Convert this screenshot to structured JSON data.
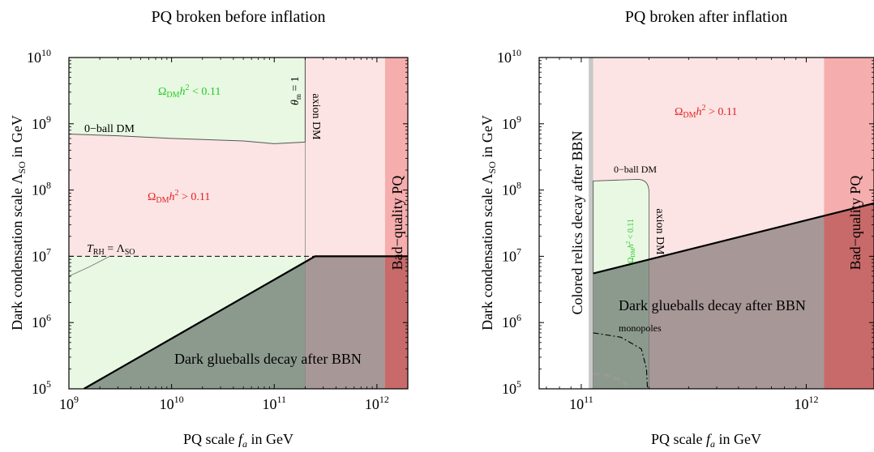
{
  "colors": {
    "dm_ok": "#e8f8e3",
    "overclosed": "#fde4e4",
    "bad_quality": "#f5a3a3",
    "glueball": "#8c9a8e",
    "glueball_over_red": "#a89797",
    "bad_over_glueball": "#c86a6a",
    "green_text": "#22cc22",
    "red_text": "#e02020",
    "grey_band": "#c8c8c8"
  },
  "chart_data": [
    {
      "type": "area",
      "title": "PQ broken before inflation",
      "xlabel": "PQ scale f_a in GeV",
      "ylabel": "Dark condensation scale Λ_SO in GeV",
      "xscale": "log",
      "yscale": "log",
      "xlim": [
        1000000000.0,
        2000000000000.0
      ],
      "ylim": [
        100000.0,
        10000000000.0
      ],
      "x_ticks": [
        {
          "base": "10",
          "exp": "9",
          "value": 1000000000.0
        },
        {
          "base": "10",
          "exp": "10",
          "value": 10000000000.0
        },
        {
          "base": "10",
          "exp": "11",
          "value": 100000000000.0
        },
        {
          "base": "10",
          "exp": "12",
          "value": 1000000000000.0
        }
      ],
      "y_ticks": [
        {
          "base": "10",
          "exp": "5",
          "value": 100000.0
        },
        {
          "base": "10",
          "exp": "6",
          "value": 1000000.0
        },
        {
          "base": "10",
          "exp": "7",
          "value": 10000000.0
        },
        {
          "base": "10",
          "exp": "8",
          "value": 100000000.0
        },
        {
          "base": "10",
          "exp": "9",
          "value": 1000000000.0
        },
        {
          "base": "10",
          "exp": "10",
          "value": 10000000000.0
        }
      ],
      "regions": {
        "theta_line_fa": 200000000000.0,
        "reheat_lambda": 10000000.0,
        "bad_quality_fa": 1200000000000.0,
        "glueball_boundary": [
          [
            1400000000.0,
            100000.0
          ],
          [
            250000000000.0,
            10000000.0
          ],
          [
            2000000000000.0,
            10000000.0
          ]
        ],
        "oball_boundary": [
          [
            1000000000.0,
            700000000.0
          ],
          [
            3000000000.0,
            660000000.0
          ],
          [
            10000000000.0,
            600000000.0
          ],
          [
            50000000000.0,
            550000000.0
          ],
          [
            100000000000.0,
            500000000.0
          ],
          [
            200000000000.0,
            530000000.0
          ],
          [
            200000000000.0,
            10000000000.0
          ]
        ],
        "reheat_curve": [
          [
            1000000000.0,
            5000000.0
          ],
          [
            1600000000.0,
            7000000.0
          ],
          [
            2500000000.0,
            10000000.0
          ]
        ]
      },
      "annotations": {
        "dm_under": "Ω_DM h^2 < 0.11",
        "dm_over": "Ω_DM h^2 > 0.11",
        "oball": "0−ball DM",
        "axion": "axion DM",
        "theta": "θ_m = 1",
        "reheat": "T_RH = Λ_SO",
        "glueballs": "Dark glueballs decay after BBN",
        "bad_quality": "Bad−quality PQ"
      }
    },
    {
      "type": "area",
      "title": "PQ broken after inflation",
      "xlabel": "PQ scale f_a in GeV",
      "ylabel": "Dark condensation scale Λ_SO in GeV",
      "xscale": "log",
      "yscale": "log",
      "xlim": [
        65000000000.0,
        2000000000000.0
      ],
      "ylim": [
        100000.0,
        10000000000.0
      ],
      "x_ticks": [
        {
          "base": "10",
          "exp": "11",
          "value": 100000000000.0
        },
        {
          "base": "10",
          "exp": "12",
          "value": 1000000000000.0
        }
      ],
      "y_ticks": [
        {
          "base": "10",
          "exp": "5",
          "value": 100000.0
        },
        {
          "base": "10",
          "exp": "6",
          "value": 1000000.0
        },
        {
          "base": "10",
          "exp": "7",
          "value": 10000000.0
        },
        {
          "base": "10",
          "exp": "8",
          "value": 100000000.0
        },
        {
          "base": "10",
          "exp": "9",
          "value": 1000000000.0
        },
        {
          "base": "10",
          "exp": "10",
          "value": 10000000000.0
        }
      ],
      "regions": {
        "relics_fa": 112000000000.0,
        "relics_band_fa": [
          108000000000.0,
          113000000000.0
        ],
        "bad_quality_fa": 1200000000000.0,
        "glueball_boundary": [
          [
            113000000000.0,
            5500000.0
          ],
          [
            2000000000000.0,
            63000000.0
          ]
        ],
        "dm_ok_box": {
          "fa": [
            113000000000.0,
            200000000000.0
          ],
          "lambda_top": 145000000.0
        },
        "monopole_curve": [
          [
            113000000000.0,
            700000.0
          ],
          [
            150000000000.0,
            600000.0
          ],
          [
            185000000000.0,
            400000.0
          ],
          [
            195000000000.0,
            200000.0
          ],
          [
            197000000000.0,
            100000.0
          ]
        ],
        "dashed_curve": [
          [
            113000000000.0,
            170000.0
          ],
          [
            130000000000.0,
            160000.0
          ],
          [
            150000000000.0,
            135000.0
          ],
          [
            160000000000.0,
            115000.0
          ]
        ]
      },
      "annotations": {
        "dm_over": "Ω_DM h^2 > 0.11",
        "dm_under": "Ω_DM h^2 < 0.11",
        "oball": "0−ball DM",
        "axion": "axion DM",
        "relics": "Colored relics decay after BBN",
        "glueballs": "Dark glueballs decay after BBN",
        "monopoles": "monopoles",
        "bad_quality": "Bad−quality PQ"
      }
    }
  ],
  "text": {
    "left_title": "PQ broken before inflation",
    "right_title": "PQ broken after inflation",
    "x_label_prefix": "PQ scale ",
    "x_label_var": "f",
    "x_label_sub": "a",
    "x_label_suffix": " in GeV",
    "y_label_prefix": "Dark condensation scale Λ",
    "y_label_sub": "SO",
    "y_label_suffix": " in GeV",
    "omega": "Ω",
    "dm_sub": "DM",
    "h": "h",
    "sq": "2",
    "less": " < 0.11",
    "greater": " > 0.11",
    "oball": "0−ball DM",
    "axion": "axion DM",
    "theta": "θ",
    "theta_sub": "m",
    "theta_rest": " = 1",
    "t_rh": "T",
    "t_rh_sub": "RH",
    "t_rh_eq": " = Λ",
    "t_rh_sub2": "SO",
    "glueballs": "Dark glueballs decay after BBN",
    "bad_quality": "Bad−quality PQ",
    "relics": "Colored relics decay after BBN",
    "monopoles": "monopoles"
  }
}
